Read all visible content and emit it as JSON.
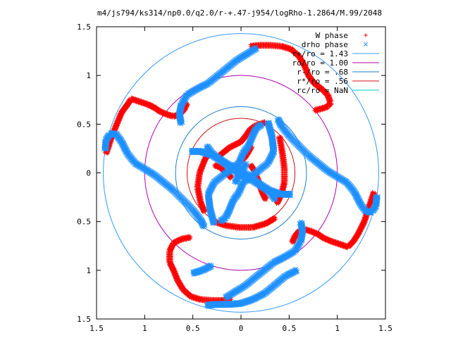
{
  "chart_data": {
    "type": "scatter",
    "title": "m4/js794/ks314/np0.0/q2.0/r-+.47-j954/logRho-1.2864/M.99/2048",
    "xlabel": "",
    "ylabel": "",
    "xlim": [
      -1.5,
      1.5
    ],
    "ylim": [
      -1.5,
      1.5
    ],
    "x_ticks": [
      -1.5,
      -1,
      -0.5,
      0,
      0.5,
      1,
      1.5
    ],
    "y_ticks": [
      -1.5,
      -1,
      -0.5,
      0,
      0.5,
      1,
      1.5
    ],
    "x_tick_labels": [
      "1.5",
      "1",
      "0.5",
      "0",
      "0.5",
      "1",
      "1.5"
    ],
    "y_tick_labels": [
      "1.5",
      "1",
      "0.5",
      "0",
      "0.5",
      "1",
      "1.5"
    ],
    "grid": false,
    "legend_position": "top-right",
    "series": [
      {
        "name": "W phase",
        "marker": "plus",
        "color": "#ff0000",
        "arms": [
          [
            [
              -0.22,
              0.18
            ],
            [
              -0.12,
              0.26
            ],
            [
              0.0,
              0.32
            ],
            [
              0.05,
              0.38
            ],
            [
              0.09,
              0.44
            ],
            [
              0.14,
              0.48
            ],
            [
              0.2,
              0.5
            ],
            [
              0.26,
              0.52
            ]
          ],
          [
            [
              -0.28,
              -0.5
            ],
            [
              -0.16,
              -0.54
            ],
            [
              -0.02,
              -0.56
            ],
            [
              0.12,
              -0.56
            ],
            [
              0.26,
              -0.52
            ],
            [
              0.36,
              -0.46
            ]
          ],
          [
            [
              0.1,
              0.08
            ],
            [
              0.14,
              0.02
            ],
            [
              0.18,
              -0.08
            ],
            [
              0.22,
              -0.2
            ],
            [
              0.26,
              -0.28
            ]
          ],
          [
            [
              -0.1,
              -0.05
            ],
            [
              -0.15,
              0.0
            ],
            [
              -0.22,
              0.06
            ],
            [
              -0.28,
              0.08
            ]
          ],
          [
            [
              -0.02,
              0.1
            ],
            [
              0.04,
              0.16
            ],
            [
              0.08,
              0.22
            ],
            [
              0.11,
              0.28
            ]
          ],
          [
            [
              -0.38,
              -0.4
            ],
            [
              -0.42,
              -0.3
            ],
            [
              -0.45,
              -0.15
            ],
            [
              -0.43,
              0.0
            ],
            [
              -0.37,
              0.15
            ],
            [
              -0.3,
              0.22
            ]
          ],
          [
            [
              0.4,
              0.37
            ],
            [
              0.43,
              0.2
            ],
            [
              0.45,
              0.05
            ],
            [
              0.45,
              -0.1
            ],
            [
              0.42,
              -0.22
            ],
            [
              0.37,
              -0.32
            ]
          ],
          [
            [
              -1.4,
              0.2
            ],
            [
              -1.35,
              0.35
            ],
            [
              -1.29,
              0.5
            ],
            [
              -1.24,
              0.62
            ],
            [
              -1.18,
              0.7
            ],
            [
              -1.14,
              0.76
            ],
            [
              -1.08,
              0.74
            ],
            [
              -1.02,
              0.72
            ],
            [
              -0.96,
              0.7
            ],
            [
              -0.9,
              0.67
            ],
            [
              -0.84,
              0.63
            ],
            [
              -0.77,
              0.6
            ],
            [
              -0.7,
              0.58
            ],
            [
              -0.64,
              0.6
            ],
            [
              -0.59,
              0.65
            ],
            [
              -0.56,
              0.72
            ]
          ],
          [
            [
              1.38,
              -0.2
            ],
            [
              1.33,
              -0.35
            ],
            [
              1.28,
              -0.5
            ],
            [
              1.22,
              -0.62
            ],
            [
              1.17,
              -0.7
            ],
            [
              1.11,
              -0.76
            ],
            [
              1.05,
              -0.74
            ],
            [
              0.99,
              -0.72
            ],
            [
              0.93,
              -0.7
            ],
            [
              0.86,
              -0.67
            ],
            [
              0.8,
              -0.63
            ],
            [
              0.73,
              -0.6
            ],
            [
              0.66,
              -0.58
            ],
            [
              0.6,
              -0.6
            ],
            [
              0.56,
              -0.65
            ],
            [
              0.53,
              -0.72
            ]
          ],
          [
            [
              0.1,
              1.3
            ],
            [
              0.2,
              1.31
            ],
            [
              0.3,
              1.31
            ],
            [
              0.42,
              1.3
            ],
            [
              0.52,
              1.27
            ],
            [
              0.6,
              1.2
            ],
            [
              0.66,
              1.1
            ],
            [
              0.7,
              1.0
            ],
            [
              0.76,
              0.92
            ],
            [
              0.84,
              0.86
            ],
            [
              0.9,
              0.8
            ],
            [
              0.93,
              0.72
            ],
            [
              0.9,
              0.68
            ],
            [
              0.84,
              0.66
            ],
            [
              0.76,
              0.64
            ]
          ],
          [
            [
              -0.1,
              -1.3
            ],
            [
              -0.2,
              -1.31
            ],
            [
              -0.3,
              -1.31
            ],
            [
              -0.42,
              -1.3
            ],
            [
              -0.52,
              -1.27
            ],
            [
              -0.6,
              -1.2
            ],
            [
              -0.66,
              -1.1
            ],
            [
              -0.7,
              -1.0
            ],
            [
              -0.74,
              -0.92
            ],
            [
              -0.74,
              -0.8
            ],
            [
              -0.7,
              -0.72
            ],
            [
              -0.62,
              -0.68
            ],
            [
              -0.52,
              -0.66
            ]
          ]
        ]
      },
      {
        "name": "drho phase",
        "marker": "cross",
        "color": "#1e90ff",
        "arms": [
          [
            [
              -1.41,
              0.24
            ],
            [
              -1.4,
              0.34
            ],
            [
              -1.36,
              0.4
            ],
            [
              -1.3,
              0.4
            ],
            [
              -1.24,
              0.32
            ],
            [
              -1.18,
              0.2
            ],
            [
              -1.1,
              0.1
            ],
            [
              -1.0,
              0.04
            ],
            [
              -0.9,
              -0.02
            ],
            [
              -0.8,
              -0.1
            ],
            [
              -0.7,
              -0.18
            ],
            [
              -0.6,
              -0.28
            ],
            [
              -0.5,
              -0.38
            ],
            [
              -0.42,
              -0.48
            ],
            [
              -0.38,
              -0.56
            ]
          ],
          [
            [
              1.41,
              -0.24
            ],
            [
              1.4,
              -0.34
            ],
            [
              1.36,
              -0.4
            ],
            [
              1.3,
              -0.4
            ],
            [
              1.24,
              -0.32
            ],
            [
              1.18,
              -0.2
            ],
            [
              1.1,
              -0.1
            ],
            [
              1.0,
              -0.04
            ],
            [
              0.9,
              0.02
            ],
            [
              0.8,
              0.1
            ],
            [
              0.7,
              0.18
            ],
            [
              0.6,
              0.28
            ],
            [
              0.5,
              0.38
            ],
            [
              0.42,
              0.48
            ],
            [
              0.38,
              0.56
            ]
          ],
          [
            [
              0.16,
              1.28
            ],
            [
              0.06,
              1.22
            ],
            [
              -0.04,
              1.16
            ],
            [
              -0.14,
              1.08
            ],
            [
              -0.24,
              1.0
            ],
            [
              -0.34,
              0.92
            ],
            [
              -0.46,
              0.86
            ],
            [
              -0.56,
              0.8
            ],
            [
              -0.62,
              0.7
            ],
            [
              -0.64,
              0.6
            ],
            [
              -0.62,
              0.5
            ]
          ],
          [
            [
              -0.16,
              -1.28
            ],
            [
              -0.06,
              -1.22
            ],
            [
              0.04,
              -1.16
            ],
            [
              0.14,
              -1.08
            ],
            [
              0.24,
              -1.0
            ],
            [
              0.34,
              -0.92
            ],
            [
              0.46,
              -0.86
            ],
            [
              0.56,
              -0.8
            ],
            [
              0.62,
              -0.7
            ],
            [
              0.64,
              -0.6
            ],
            [
              0.62,
              -0.5
            ]
          ],
          [
            [
              0.58,
              -1.0
            ],
            [
              0.46,
              -1.06
            ],
            [
              0.34,
              -1.16
            ],
            [
              0.24,
              -1.24
            ],
            [
              0.12,
              -1.3
            ],
            [
              0.0,
              -1.34
            ],
            [
              -0.12,
              -1.35
            ],
            [
              -0.26,
              -1.35
            ],
            [
              -0.36,
              -1.36
            ]
          ],
          [
            [
              -0.5,
              -1.03
            ],
            [
              -0.4,
              -1.0
            ],
            [
              -0.3,
              -0.95
            ]
          ],
          [
            [
              -0.28,
              -0.52
            ],
            [
              -0.32,
              -0.38
            ],
            [
              -0.34,
              -0.22
            ],
            [
              -0.28,
              -0.1
            ],
            [
              -0.18,
              -0.02
            ],
            [
              -0.1,
              0.04
            ],
            [
              -0.02,
              0.1
            ],
            [
              0.02,
              0.2
            ],
            [
              0.08,
              0.28
            ],
            [
              0.12,
              0.38
            ],
            [
              0.16,
              0.46
            ],
            [
              0.22,
              0.5
            ]
          ],
          [
            [
              0.28,
              0.52
            ],
            [
              0.32,
              0.38
            ],
            [
              0.34,
              0.22
            ],
            [
              0.28,
              0.1
            ],
            [
              0.18,
              0.02
            ],
            [
              0.1,
              -0.04
            ],
            [
              0.02,
              -0.1
            ],
            [
              -0.02,
              -0.2
            ],
            [
              -0.08,
              -0.28
            ],
            [
              -0.12,
              -0.38
            ],
            [
              -0.16,
              -0.46
            ],
            [
              -0.22,
              -0.5
            ]
          ],
          [
            [
              -0.52,
              0.22
            ],
            [
              -0.42,
              0.22
            ],
            [
              -0.3,
              0.18
            ],
            [
              -0.2,
              0.12
            ],
            [
              -0.12,
              0.06
            ],
            [
              -0.04,
              0.0
            ],
            [
              0.04,
              -0.04
            ],
            [
              0.12,
              -0.08
            ],
            [
              0.22,
              -0.14
            ],
            [
              0.3,
              -0.2
            ],
            [
              0.36,
              -0.28
            ]
          ],
          [
            [
              0.52,
              -0.22
            ],
            [
              0.42,
              -0.22
            ],
            [
              0.3,
              -0.18
            ],
            [
              0.2,
              -0.12
            ],
            [
              0.12,
              -0.06
            ],
            [
              0.04,
              0.0
            ],
            [
              -0.04,
              0.04
            ],
            [
              -0.12,
              0.08
            ],
            [
              -0.22,
              0.14
            ],
            [
              -0.3,
              0.2
            ],
            [
              -0.36,
              0.28
            ]
          ],
          [
            [
              -0.06,
              -0.1
            ],
            [
              0.0,
              0.02
            ],
            [
              0.06,
              0.1
            ]
          ]
        ]
      },
      {
        "name": "r+/ro = 1.43",
        "type": "circle",
        "r": 1.43,
        "color": "#3399ff"
      },
      {
        "name": "ro/ro = 1.00",
        "type": "circle",
        "r": 1.0,
        "color": "#b000b0"
      },
      {
        "name": "r-/ro = .68",
        "type": "circle",
        "r": 0.68,
        "color": "#1e7fd0"
      },
      {
        "name": "r*/ro = .56",
        "type": "circle",
        "r": 0.56,
        "color": "#d01010"
      },
      {
        "name": "rc/ro = NaN",
        "type": "circle",
        "r": null,
        "color": "#00c8c8"
      }
    ]
  }
}
